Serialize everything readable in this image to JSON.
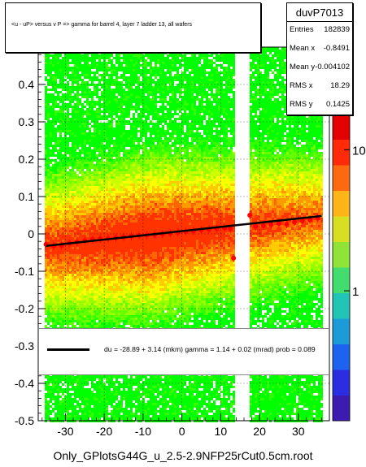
{
  "stats": {
    "name": "duvP7013",
    "rows": [
      {
        "k": "Entries",
        "v": "182839"
      },
      {
        "k": "Mean x",
        "v": "-0.8491"
      },
      {
        "k": "Mean y",
        "v": "-0.004102"
      },
      {
        "k": "RMS x",
        "v": "18.29"
      },
      {
        "k": "RMS y",
        "v": "0.1425"
      }
    ]
  },
  "legend": {
    "fit_text": "du =  -28.89 +   3.14 (mkm) gamma =    1.14 +  0.02 (mrad) prob = 0.089"
  },
  "footer": "Only_GPlotsG44G_u_2.5-2.9NFP25rCut0.5cm.root",
  "colors": {
    "profile_points": "#ff0000",
    "fit_line": "#000000"
  },
  "chart_data": {
    "type": "heatmap",
    "title": "<u - uP>       versus   v P =>  gamma for barrel 4, layer 7 ladder 13, all wafers",
    "xlim": [
      -37,
      38
    ],
    "ylim": [
      -0.5,
      0.5
    ],
    "x_ticks": [
      -30,
      -20,
      -10,
      0,
      10,
      20,
      30
    ],
    "x_tick_labels": [
      "-30",
      "-20",
      "-10",
      "0",
      "10",
      "20",
      "30"
    ],
    "y_ticks": [
      -0.5,
      -0.4,
      -0.3,
      -0.2,
      -0.1,
      0,
      0.1,
      0.2,
      0.3,
      0.4
    ],
    "y_tick_labels": [
      "-0.5",
      "-0.4",
      "-0.3",
      "-0.2",
      "-0.1",
      "0",
      "0.1",
      "0.2",
      "0.3",
      "0.4"
    ],
    "log_z": true,
    "z_ticks": [
      1,
      10
    ],
    "z_tick_labels": [
      "1",
      "10"
    ],
    "gap_x": [
      13.5,
      17
    ],
    "fit_line": {
      "x": [
        -35,
        36
      ],
      "y": [
        -0.032,
        0.048
      ]
    },
    "profile": {
      "x": [
        -35,
        -33,
        -31,
        -29,
        -27,
        -25,
        -23,
        -21,
        -19,
        -17,
        -15,
        -13,
        -11,
        -9,
        -7,
        -5,
        -3,
        -1,
        1,
        3,
        5,
        7,
        9,
        11,
        12.5,
        13.3,
        17.5,
        19,
        21,
        23,
        25,
        27,
        29,
        31,
        33,
        35
      ],
      "y": [
        -0.028,
        -0.032,
        -0.031,
        -0.025,
        -0.022,
        -0.018,
        -0.015,
        -0.013,
        -0.012,
        -0.01,
        -0.008,
        -0.006,
        -0.004,
        -0.003,
        -0.002,
        0.0,
        0.002,
        0.004,
        0.006,
        0.008,
        0.01,
        0.012,
        0.014,
        0.016,
        0.014,
        -0.065,
        0.05,
        0.02,
        0.022,
        0.025,
        0.028,
        0.026,
        0.032,
        0.035,
        0.038,
        0.042
      ]
    }
  }
}
